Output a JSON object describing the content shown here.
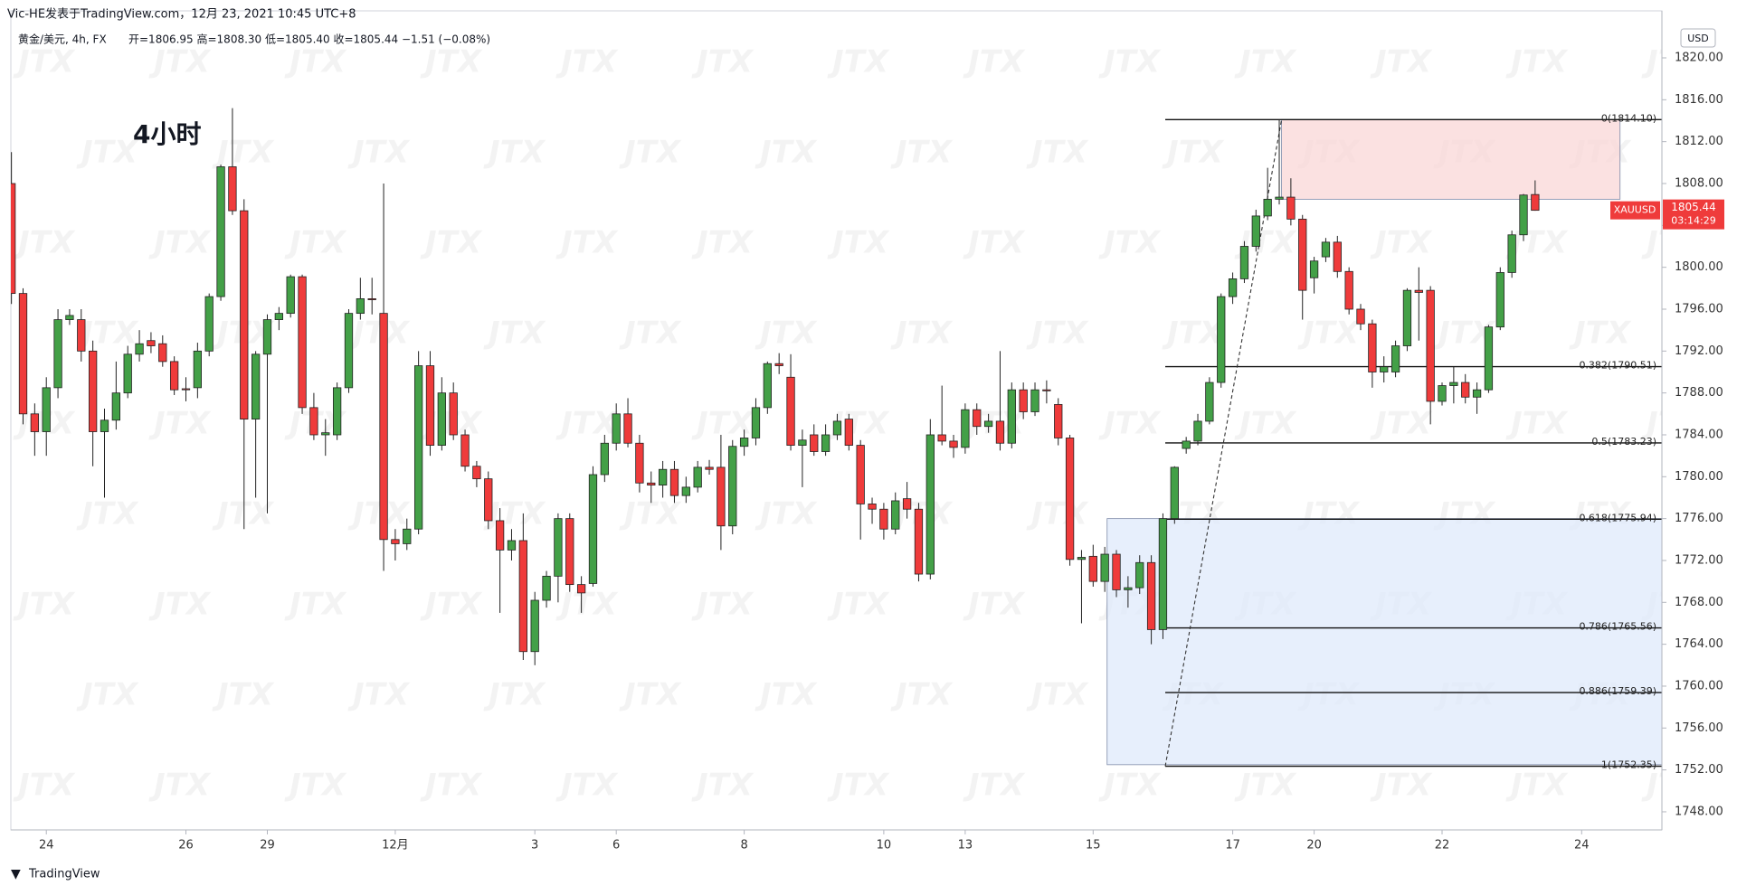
{
  "header": {
    "byline": "Vic-HE发表于TradingView.com，12月 23, 2021 10:45 UTC+8",
    "symbol": "黄金/美元, 4h, FX",
    "ohlc_text": "开=1806.95  高=1808.30  低=1805.40  收=1805.44  −1.51 (−0.08%)"
  },
  "footer": "TradingView",
  "chart_data": {
    "type": "candlestick",
    "annotation": "4小时",
    "currency": "USD",
    "symbol_tag": "XAUUSD",
    "last_price": {
      "value": 1805.44,
      "label": "1805.44"
    },
    "countdown": "03:14:29",
    "watermark": "JTX",
    "up_color": "#43a047",
    "down_color": "#ef3b3b",
    "xlim": [
      -0.05,
      141.9
    ],
    "ylim": [
      1746.27,
      1824.49
    ],
    "yticks": [
      {
        "value": 1748,
        "label": "1748.00"
      },
      {
        "value": 1752,
        "label": "1752.00"
      },
      {
        "value": 1756,
        "label": "1756.00"
      },
      {
        "value": 1760,
        "label": "1760.00"
      },
      {
        "value": 1764,
        "label": "1764.00"
      },
      {
        "value": 1768,
        "label": "1768.00"
      },
      {
        "value": 1772,
        "label": "1772.00"
      },
      {
        "value": 1776,
        "label": "1776.00"
      },
      {
        "value": 1780,
        "label": "1780.00"
      },
      {
        "value": 1784,
        "label": "1784.00"
      },
      {
        "value": 1788,
        "label": "1788.00"
      },
      {
        "value": 1792,
        "label": "1792.00"
      },
      {
        "value": 1796,
        "label": "1796.00"
      },
      {
        "value": 1800,
        "label": "1800.00"
      },
      {
        "value": 1804,
        "label": "1804.00"
      },
      {
        "value": 1808,
        "label": "1808.00"
      },
      {
        "value": 1812,
        "label": "1812.00"
      },
      {
        "value": 1816,
        "label": "1816.00"
      },
      {
        "value": 1820,
        "label": "1820.00"
      }
    ],
    "xticks": [
      {
        "value": 3,
        "label": "24"
      },
      {
        "value": 15,
        "label": "26"
      },
      {
        "value": 22,
        "label": "29"
      },
      {
        "value": 33,
        "label": "12月"
      },
      {
        "value": 45,
        "label": "3"
      },
      {
        "value": 52,
        "label": "6"
      },
      {
        "value": 63,
        "label": "8"
      },
      {
        "value": 75,
        "label": "10"
      },
      {
        "value": 82,
        "label": "13"
      },
      {
        "value": 93,
        "label": "15"
      },
      {
        "value": 105,
        "label": "17"
      },
      {
        "value": 112,
        "label": "20"
      },
      {
        "value": 123,
        "label": "22"
      },
      {
        "value": 135,
        "label": "24"
      }
    ],
    "candles": [
      [
        1808,
        1811,
        1796.5,
        1797.5
      ],
      [
        1797.5,
        1798,
        1785,
        1786
      ],
      [
        1786,
        1787,
        1782,
        1784.3
      ],
      [
        1784.3,
        1789.5,
        1782,
        1788.5
      ],
      [
        1788.5,
        1796,
        1787.5,
        1795
      ],
      [
        1795,
        1796,
        1794.5,
        1795.4
      ],
      [
        1795,
        1796,
        1791,
        1792
      ],
      [
        1792,
        1793,
        1781,
        1784.3
      ],
      [
        1784.3,
        1786.5,
        1778,
        1785.4
      ],
      [
        1785.4,
        1791,
        1784.5,
        1788
      ],
      [
        1788,
        1792.5,
        1787.5,
        1791.7
      ],
      [
        1791.7,
        1794,
        1791,
        1792.7
      ],
      [
        1793,
        1793.8,
        1791.8,
        1792.5
      ],
      [
        1792.7,
        1793.5,
        1790.5,
        1791
      ],
      [
        1791,
        1791.5,
        1787.8,
        1788.3
      ],
      [
        1788.4,
        1789.5,
        1787.2,
        1788.3
      ],
      [
        1788.5,
        1792.8,
        1787.5,
        1792
      ],
      [
        1792,
        1797.5,
        1791.5,
        1797.2
      ],
      [
        1797.2,
        1809.8,
        1796.8,
        1809.6
      ],
      [
        1809.6,
        1815.2,
        1805,
        1805.4
      ],
      [
        1805.4,
        1806.5,
        1775,
        1785.5
      ],
      [
        1785.5,
        1792,
        1778,
        1791.7
      ],
      [
        1791.7,
        1795.5,
        1776.5,
        1795
      ],
      [
        1795,
        1796.2,
        1794,
        1795.6
      ],
      [
        1795.6,
        1799.3,
        1795.2,
        1799.1
      ],
      [
        1799.1,
        1799.3,
        1786,
        1786.6
      ],
      [
        1786.6,
        1788,
        1783.5,
        1784
      ],
      [
        1784,
        1785.5,
        1782,
        1784.2
      ],
      [
        1784,
        1789,
        1783.5,
        1788.5
      ],
      [
        1788.5,
        1796,
        1788,
        1795.6
      ],
      [
        1795.6,
        1799,
        1795,
        1797
      ],
      [
        1797,
        1799,
        1795.5,
        1796.9
      ],
      [
        1795.6,
        1808,
        1771,
        1774
      ],
      [
        1774,
        1775,
        1772,
        1773.6
      ],
      [
        1773.6,
        1776,
        1773,
        1775
      ],
      [
        1775,
        1792,
        1774.5,
        1790.6
      ],
      [
        1790.6,
        1792,
        1782,
        1783
      ],
      [
        1783,
        1789.5,
        1782.5,
        1788
      ],
      [
        1788,
        1789,
        1783.5,
        1784
      ],
      [
        1784,
        1784.5,
        1780.5,
        1781
      ],
      [
        1781,
        1781.5,
        1779,
        1779.8
      ],
      [
        1779.8,
        1780.5,
        1775,
        1775.8
      ],
      [
        1775.8,
        1777,
        1767,
        1773
      ],
      [
        1773,
        1775,
        1772,
        1773.9
      ],
      [
        1773.9,
        1776.5,
        1762.5,
        1763.3
      ],
      [
        1763.3,
        1769,
        1762,
        1768.2
      ],
      [
        1768.2,
        1771,
        1767.5,
        1770.5
      ],
      [
        1770.5,
        1776.5,
        1768,
        1776
      ],
      [
        1776,
        1776.5,
        1769,
        1769.7
      ],
      [
        1769.7,
        1770.5,
        1767,
        1768.9
      ],
      [
        1769.8,
        1781,
        1769.5,
        1780.2
      ],
      [
        1780.2,
        1784,
        1779.5,
        1783.2
      ],
      [
        1783.2,
        1787,
        1782.5,
        1786
      ],
      [
        1786,
        1787.5,
        1782.8,
        1783.2
      ],
      [
        1783.2,
        1784,
        1778.5,
        1779.4
      ],
      [
        1779.4,
        1780.5,
        1777.5,
        1779.2
      ],
      [
        1779.2,
        1781.5,
        1778,
        1780.7
      ],
      [
        1780.7,
        1781.5,
        1777.5,
        1778.2
      ],
      [
        1778.2,
        1780,
        1777.5,
        1779
      ],
      [
        1779,
        1781.5,
        1778.5,
        1780.9
      ],
      [
        1780.9,
        1781.6,
        1780.2,
        1780.7
      ],
      [
        1780.9,
        1784,
        1773,
        1775.3
      ],
      [
        1775.3,
        1783.5,
        1774.5,
        1782.9
      ],
      [
        1782.9,
        1784.5,
        1782,
        1783.7
      ],
      [
        1783.7,
        1787.5,
        1783,
        1786.6
      ],
      [
        1786.6,
        1791,
        1786,
        1790.8
      ],
      [
        1790.8,
        1791.8,
        1789.8,
        1790.6
      ],
      [
        1789.5,
        1791.7,
        1782.5,
        1783
      ],
      [
        1783,
        1784.5,
        1779,
        1783.5
      ],
      [
        1784,
        1785,
        1782,
        1782.4
      ],
      [
        1782.4,
        1785,
        1782,
        1784
      ],
      [
        1784,
        1786,
        1783.5,
        1785.3
      ],
      [
        1785.5,
        1786,
        1782.5,
        1783
      ],
      [
        1783,
        1783.5,
        1774,
        1777.4
      ],
      [
        1777.4,
        1778,
        1775.5,
        1776.9
      ],
      [
        1776.9,
        1777.5,
        1774,
        1775
      ],
      [
        1775,
        1778.5,
        1774.5,
        1777.7
      ],
      [
        1777.9,
        1779.5,
        1776,
        1776.9
      ],
      [
        1776.9,
        1777.5,
        1770,
        1770.7
      ],
      [
        1770.7,
        1785.5,
        1770.2,
        1784
      ],
      [
        1784,
        1788.7,
        1783,
        1783.4
      ],
      [
        1783.4,
        1784,
        1781.8,
        1782.8
      ],
      [
        1782.8,
        1787,
        1782.2,
        1786.4
      ],
      [
        1786.4,
        1787,
        1784,
        1784.8
      ],
      [
        1784.8,
        1786,
        1784.2,
        1785.3
      ],
      [
        1785.3,
        1792,
        1782.5,
        1783.2
      ],
      [
        1783.2,
        1789,
        1782.7,
        1788.3
      ],
      [
        1788.3,
        1789,
        1785.5,
        1786.2
      ],
      [
        1786.2,
        1789,
        1785.8,
        1788.3
      ],
      [
        1788.3,
        1789.2,
        1787,
        1788.2
      ],
      [
        1786.9,
        1787.5,
        1783,
        1783.7
      ],
      [
        1783.7,
        1784,
        1771.5,
        1772.1
      ],
      [
        1772.1,
        1773,
        1766,
        1772.3
      ],
      [
        1772.4,
        1773.5,
        1769.5,
        1770
      ],
      [
        1770,
        1773.3,
        1769,
        1772.6
      ],
      [
        1772.6,
        1773,
        1768.5,
        1769.2
      ],
      [
        1769.2,
        1770.5,
        1767.5,
        1769.4
      ],
      [
        1769.4,
        1772.5,
        1768.8,
        1771.8
      ],
      [
        1771.8,
        1772.5,
        1764,
        1765.4
      ],
      [
        1765.4,
        1776.5,
        1764.5,
        1776
      ],
      [
        1776,
        1781,
        1775.5,
        1780.9
      ],
      [
        1782.7,
        1783.8,
        1782.2,
        1783.4
      ],
      [
        1783.4,
        1786,
        1783,
        1785.3
      ],
      [
        1785.3,
        1789.5,
        1785,
        1789
      ],
      [
        1789,
        1797.5,
        1788.5,
        1797.2
      ],
      [
        1797.2,
        1799.5,
        1796.5,
        1798.9
      ],
      [
        1798.9,
        1802.5,
        1798.5,
        1802
      ],
      [
        1802,
        1805.5,
        1801.5,
        1804.9
      ],
      [
        1804.9,
        1809.5,
        1804.5,
        1806.5
      ],
      [
        1806.5,
        1814.1,
        1806,
        1806.7
      ],
      [
        1806.7,
        1808.5,
        1804,
        1804.6
      ],
      [
        1804.6,
        1805,
        1795,
        1797.8
      ],
      [
        1799,
        1801,
        1797.5,
        1800.6
      ],
      [
        1801,
        1802.8,
        1800.5,
        1802.4
      ],
      [
        1802.4,
        1803,
        1799,
        1799.6
      ],
      [
        1799.6,
        1800,
        1795.5,
        1796
      ],
      [
        1796,
        1796.5,
        1794,
        1794.6
      ],
      [
        1794.6,
        1795,
        1788.5,
        1790
      ],
      [
        1790,
        1791.5,
        1789,
        1790.5
      ],
      [
        1790,
        1793,
        1789.5,
        1792.5
      ],
      [
        1792.5,
        1798,
        1792,
        1797.8
      ],
      [
        1797.8,
        1800,
        1793,
        1797.6
      ],
      [
        1797.8,
        1798.2,
        1785,
        1787.2
      ],
      [
        1787.2,
        1789,
        1786.8,
        1788.7
      ],
      [
        1788.7,
        1790.5,
        1787,
        1789
      ],
      [
        1789,
        1789.8,
        1787,
        1787.6
      ],
      [
        1787.6,
        1789,
        1786,
        1788.3
      ],
      [
        1788.3,
        1794.5,
        1788,
        1794.3
      ],
      [
        1794.3,
        1800,
        1794,
        1799.5
      ],
      [
        1799.5,
        1803.5,
        1799,
        1803.1
      ],
      [
        1803.1,
        1807,
        1802.5,
        1806.9
      ],
      [
        1806.95,
        1808.3,
        1805.4,
        1805.44
      ]
    ],
    "zones": [
      {
        "x0": 109.2,
        "x1": 138.3,
        "top": 1814.1,
        "bottom": 1806.5,
        "color": "#f9d7d7"
      },
      {
        "x0": 94.2,
        "x1": 141.9,
        "top": 1776,
        "bottom": 1752.5,
        "color": "#dfe9fb"
      }
    ],
    "fib": {
      "x0": 99.2,
      "levels": [
        {
          "value": 1814.1,
          "label": "0(1814.10)"
        },
        {
          "value": 1790.51,
          "label": "0.382(1790.51)"
        },
        {
          "value": 1783.23,
          "label": "0.5(1783.23)"
        },
        {
          "value": 1775.94,
          "label": "0.618(1775.94)"
        },
        {
          "value": 1765.56,
          "label": "0.786(1765.56)"
        },
        {
          "value": 1759.39,
          "label": "0.886(1759.39)"
        },
        {
          "value": 1752.35,
          "label": "1(1752.35)"
        }
      ]
    },
    "trend_line": {
      "x": [
        99.2,
        109.2
      ],
      "y": [
        1752.35,
        1814.1
      ]
    }
  }
}
